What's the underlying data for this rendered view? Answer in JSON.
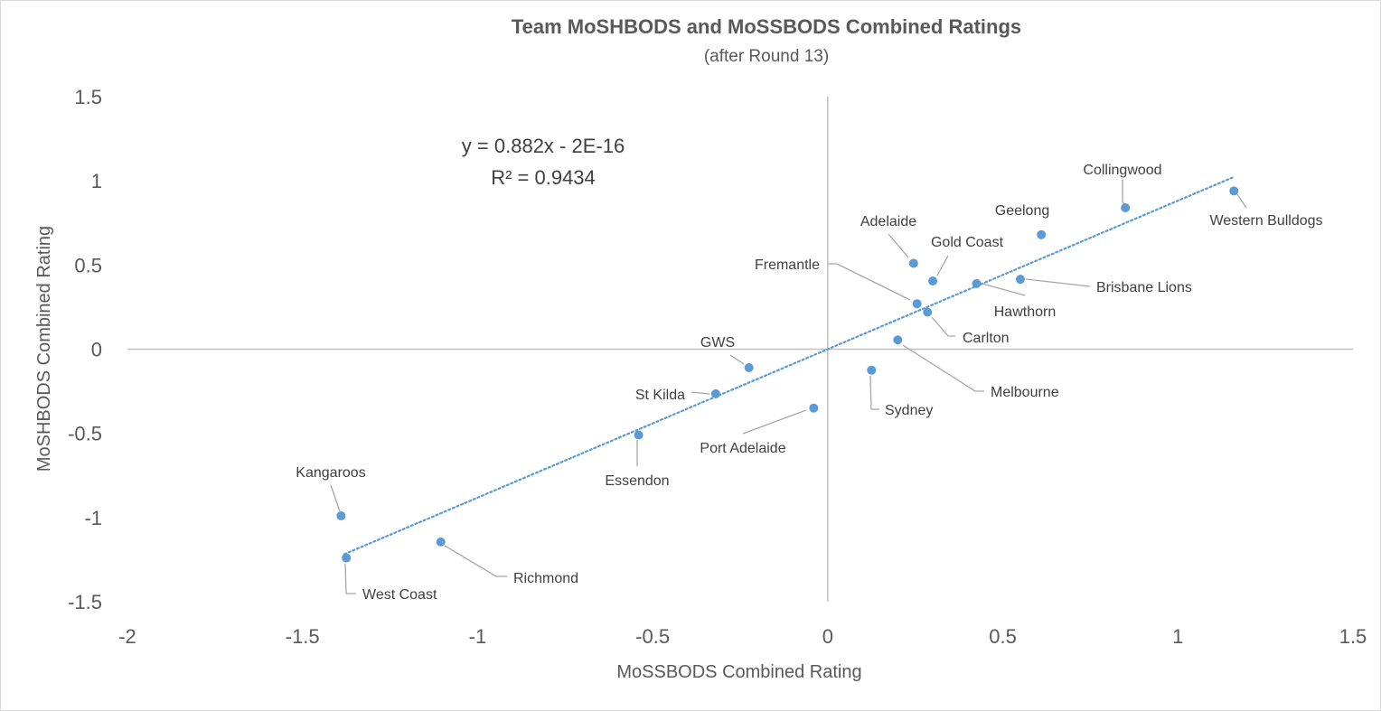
{
  "chart_data": {
    "type": "scatter",
    "title": "Team MoSHBODS and MoSSBODS Combined Ratings",
    "subtitle": "(after Round 13)",
    "xlabel": "MoSSBODS Combined Rating",
    "ylabel": "MoSHBODS Combined Rating",
    "xlim": [
      -2,
      1.5
    ],
    "ylim": [
      -1.5,
      1.5
    ],
    "x_ticks": [
      -2,
      -1.5,
      -1,
      -0.5,
      0,
      0.5,
      1,
      1.5
    ],
    "x_tick_labels": [
      "-2",
      "-1.5",
      "-1",
      "-0.5",
      "0",
      "0.5",
      "1",
      "1.5"
    ],
    "y_ticks": [
      1.5,
      1,
      0.5,
      0,
      -0.5,
      -1,
      -1.5
    ],
    "y_tick_labels": [
      "1.5",
      "1",
      "0.5",
      "0",
      "-0.5",
      "-1",
      "-1.5"
    ],
    "grid": false,
    "marker_color": "#5b9bd5",
    "trendline": {
      "slope": 0.882,
      "intercept": 0,
      "x_range": [
        -1.38,
        1.16
      ],
      "color": "#5b9bd5",
      "style": "dotted",
      "equation": "y = 0.882x - 2E-16",
      "r_squared": "R² = 0.9434"
    },
    "points": [
      {
        "team": "Collingwood",
        "x": 0.85,
        "y": 0.84
      },
      {
        "team": "Western Bulldogs",
        "x": 1.16,
        "y": 0.94
      },
      {
        "team": "Geelong",
        "x": 0.61,
        "y": 0.68
      },
      {
        "team": "Adelaide",
        "x": 0.245,
        "y": 0.51
      },
      {
        "team": "Gold Coast",
        "x": 0.3,
        "y": 0.405
      },
      {
        "team": "Brisbane Lions",
        "x": 0.55,
        "y": 0.415
      },
      {
        "team": "Hawthorn",
        "x": 0.425,
        "y": 0.39
      },
      {
        "team": "Fremantle",
        "x": 0.255,
        "y": 0.27
      },
      {
        "team": "Carlton",
        "x": 0.285,
        "y": 0.22
      },
      {
        "team": "Melbourne",
        "x": 0.2,
        "y": 0.055
      },
      {
        "team": "Sydney",
        "x": 0.125,
        "y": -0.125
      },
      {
        "team": "GWS",
        "x": -0.225,
        "y": -0.11
      },
      {
        "team": "St Kilda",
        "x": -0.32,
        "y": -0.265
      },
      {
        "team": "Port Adelaide",
        "x": -0.04,
        "y": -0.35
      },
      {
        "team": "Essendon",
        "x": -0.54,
        "y": -0.51
      },
      {
        "team": "Kangaroos",
        "x": -1.39,
        "y": -0.99
      },
      {
        "team": "West Coast",
        "x": -1.375,
        "y": -1.24
      },
      {
        "team": "Richmond",
        "x": -1.105,
        "y": -1.145
      }
    ]
  }
}
